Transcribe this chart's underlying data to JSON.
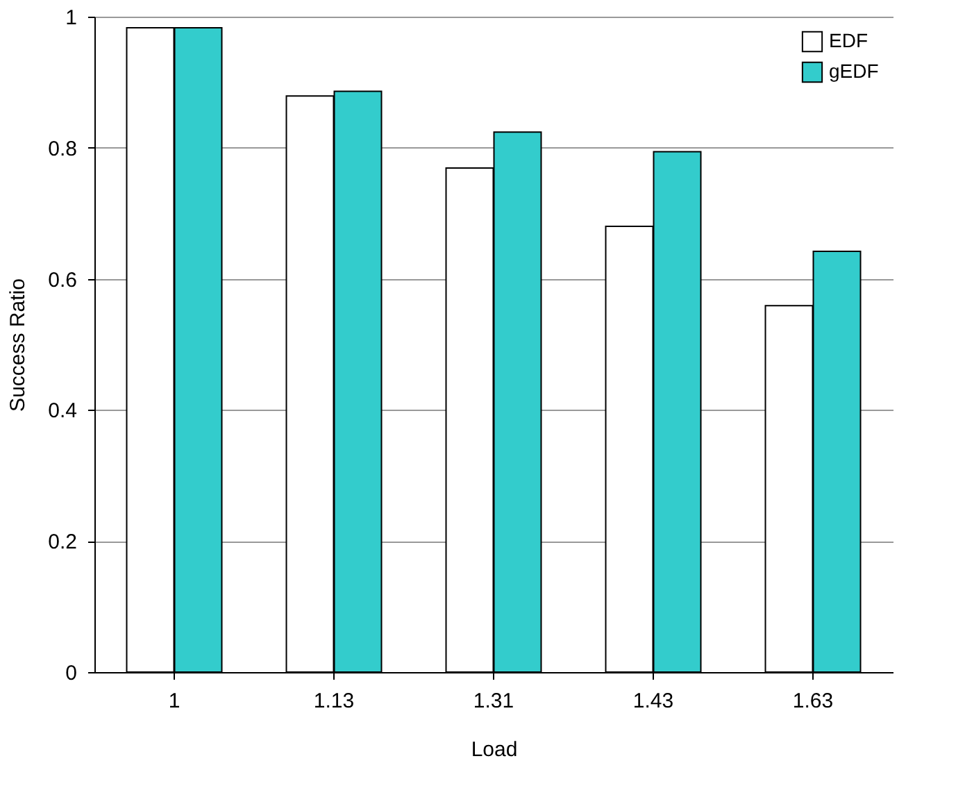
{
  "chart_data": {
    "type": "bar",
    "xlabel": "Load",
    "ylabel": "Success Ratio",
    "categories": [
      "1",
      "1.13",
      "1.31",
      "1.43",
      "1.63"
    ],
    "series": [
      {
        "name": "EDF",
        "color": "#ffffff",
        "values": [
          0.983,
          0.879,
          0.769,
          0.68,
          0.559
        ]
      },
      {
        "name": "gEDF",
        "color": "#33cccc",
        "values": [
          0.983,
          0.886,
          0.824,
          0.794,
          0.642
        ]
      }
    ],
    "ylim": [
      0,
      1
    ],
    "yticks": [
      0,
      0.2,
      0.4,
      0.6,
      0.8,
      1
    ],
    "grid": "y",
    "legend": "top right"
  }
}
